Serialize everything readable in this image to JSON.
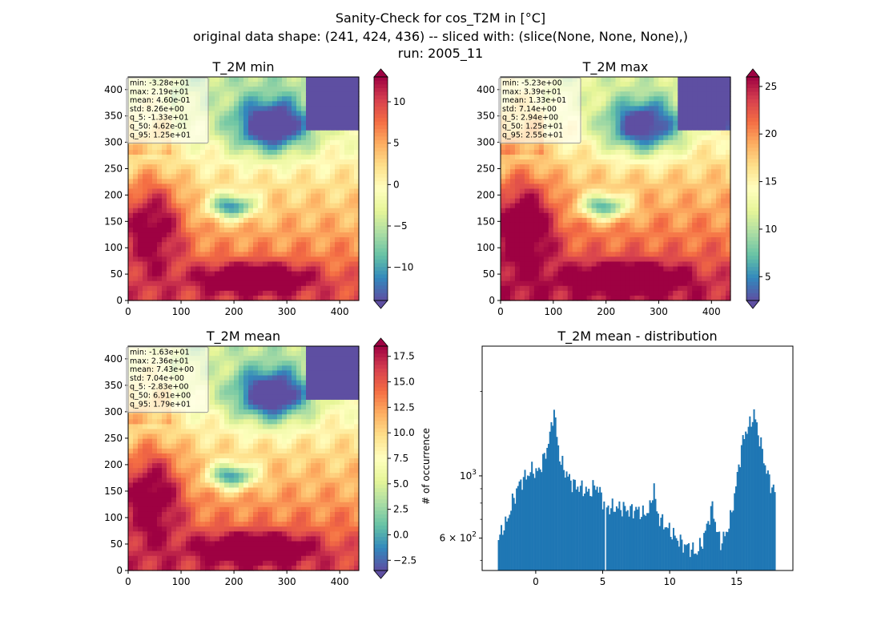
{
  "suptitle": {
    "line1": "Sanity-Check for cos_T2M in [°C]",
    "line2": "original data shape: (241, 424, 436) -- sliced with: (slice(None, None, None),)",
    "line3": "run: 2005_11"
  },
  "colors": {
    "colormap": "Spectral_r",
    "hist_bar": "#1f77b4",
    "sea_warm": "#a50026",
    "stats_box_bg": "#ffffff"
  },
  "chart_data": [
    {
      "type": "heatmap",
      "title": "T_2M min",
      "x_ticks": [
        "0",
        "100",
        "200",
        "300",
        "400"
      ],
      "y_ticks": [
        "0",
        "50",
        "100",
        "150",
        "200",
        "250",
        "300",
        "350",
        "400"
      ],
      "xlim": [
        0,
        436
      ],
      "ylim": [
        0,
        424
      ],
      "colorbar": {
        "vmin": -14,
        "vmax": 13,
        "ticks": [
          "−10",
          "−5",
          "0",
          "5",
          "10"
        ],
        "tick_values": [
          -10,
          -5,
          0,
          5,
          10
        ],
        "extend": "both",
        "label": ""
      },
      "stats": [
        "min: -3.28e+01",
        "max: 2.19e+01",
        "mean: 4.60e-01",
        "std: 8.26e+00",
        "q_5: -1.33e+01",
        "q_50: 4.62e-01",
        "q_95: 1.25e+01"
      ]
    },
    {
      "type": "heatmap",
      "title": "T_2M max",
      "x_ticks": [
        "0",
        "100",
        "200",
        "300",
        "400"
      ],
      "y_ticks": [
        "0",
        "50",
        "100",
        "150",
        "200",
        "250",
        "300",
        "350",
        "400"
      ],
      "xlim": [
        0,
        436
      ],
      "ylim": [
        0,
        424
      ],
      "colorbar": {
        "vmin": 2.5,
        "vmax": 26,
        "ticks": [
          "5",
          "10",
          "15",
          "20",
          "25"
        ],
        "tick_values": [
          5,
          10,
          15,
          20,
          25
        ],
        "extend": "both",
        "label": ""
      },
      "stats": [
        "min: -5.23e+00",
        "max: 3.39e+01",
        "mean: 1.33e+01",
        "std: 7.14e+00",
        "q_5: 2.94e+00",
        "q_50: 1.25e+01",
        "q_95: 2.55e+01"
      ]
    },
    {
      "type": "heatmap",
      "title": "T_2M mean",
      "x_ticks": [
        "0",
        "100",
        "200",
        "300",
        "400"
      ],
      "y_ticks": [
        "0",
        "50",
        "100",
        "150",
        "200",
        "250",
        "300",
        "350",
        "400"
      ],
      "xlim": [
        0,
        436
      ],
      "ylim": [
        0,
        424
      ],
      "colorbar": {
        "vmin": -3.5,
        "vmax": 18.5,
        "ticks": [
          "−2.5",
          "0.0",
          "2.5",
          "5.0",
          "7.5",
          "10.0",
          "12.5",
          "15.0",
          "17.5"
        ],
        "tick_values": [
          -2.5,
          0,
          2.5,
          5,
          7.5,
          10,
          12.5,
          15,
          17.5
        ],
        "extend": "both",
        "label": ""
      },
      "stats": [
        "min: -1.63e+01",
        "max: 2.36e+01",
        "mean: 7.43e+00",
        "std: 7.04e+00",
        "q_5: -2.83e+00",
        "q_50: 6.91e+00",
        "q_95: 1.79e+01"
      ]
    },
    {
      "type": "bar",
      "title": "T_2M mean - distribution",
      "xlabel": "",
      "ylabel": "# of occurrence",
      "yscale": "log",
      "xlim": [
        -4,
        19.2
      ],
      "ylim": [
        460,
        2900
      ],
      "x_ticks": [
        "0",
        "5",
        "10",
        "15"
      ],
      "x_tick_values": [
        0,
        5,
        10,
        15
      ],
      "y_tick_labels": [
        {
          "value": 1000,
          "base": "10",
          "exp": "3",
          "mult": ""
        },
        {
          "value": 600,
          "base": "10",
          "exp": "2",
          "mult": "6 × "
        }
      ],
      "y_minor_ticks": [
        500,
        700,
        800,
        900,
        2000
      ],
      "bins": {
        "start": -2.83,
        "end": 17.9
      },
      "anchors": [
        [
          -2.83,
          580
        ],
        [
          -2.5,
          650
        ],
        [
          -2.2,
          680
        ],
        [
          -2.0,
          720
        ],
        [
          -1.8,
          800
        ],
        [
          -1.6,
          830
        ],
        [
          -1.4,
          900
        ],
        [
          -1.2,
          940
        ],
        [
          -0.9,
          980
        ],
        [
          -0.5,
          1020
        ],
        [
          -0.2,
          1060
        ],
        [
          0.0,
          1020
        ],
        [
          0.3,
          1060
        ],
        [
          0.6,
          1150
        ],
        [
          0.9,
          1280
        ],
        [
          1.2,
          1520
        ],
        [
          1.35,
          1780
        ],
        [
          1.5,
          1480
        ],
        [
          1.8,
          1150
        ],
        [
          2.1,
          1060
        ],
        [
          2.6,
          960
        ],
        [
          3.0,
          920
        ],
        [
          3.5,
          900
        ],
        [
          4.0,
          870
        ],
        [
          4.5,
          930
        ],
        [
          4.8,
          870
        ],
        [
          5.2,
          780
        ],
        [
          5.5,
          770
        ],
        [
          6.0,
          770
        ],
        [
          6.5,
          770
        ],
        [
          7.0,
          750
        ],
        [
          7.5,
          760
        ],
        [
          8.0,
          730
        ],
        [
          8.3,
          740
        ],
        [
          8.6,
          780
        ],
        [
          8.8,
          950
        ],
        [
          9.0,
          750
        ],
        [
          9.3,
          700
        ],
        [
          9.6,
          670
        ],
        [
          10.0,
          640
        ],
        [
          10.5,
          600
        ],
        [
          11.0,
          570
        ],
        [
          11.5,
          555
        ],
        [
          12.0,
          530
        ],
        [
          12.5,
          590
        ],
        [
          12.9,
          700
        ],
        [
          13.2,
          780
        ],
        [
          13.5,
          640
        ],
        [
          13.8,
          580
        ],
        [
          14.2,
          620
        ],
        [
          14.6,
          720
        ],
        [
          15.0,
          960
        ],
        [
          15.4,
          1300
        ],
        [
          15.7,
          1450
        ],
        [
          16.0,
          1520
        ],
        [
          16.3,
          1680
        ],
        [
          16.5,
          1500
        ],
        [
          16.8,
          1300
        ],
        [
          17.1,
          1100
        ],
        [
          17.4,
          980
        ],
        [
          17.6,
          920
        ],
        [
          17.9,
          870
        ]
      ],
      "gap_at": 5.25
    }
  ]
}
